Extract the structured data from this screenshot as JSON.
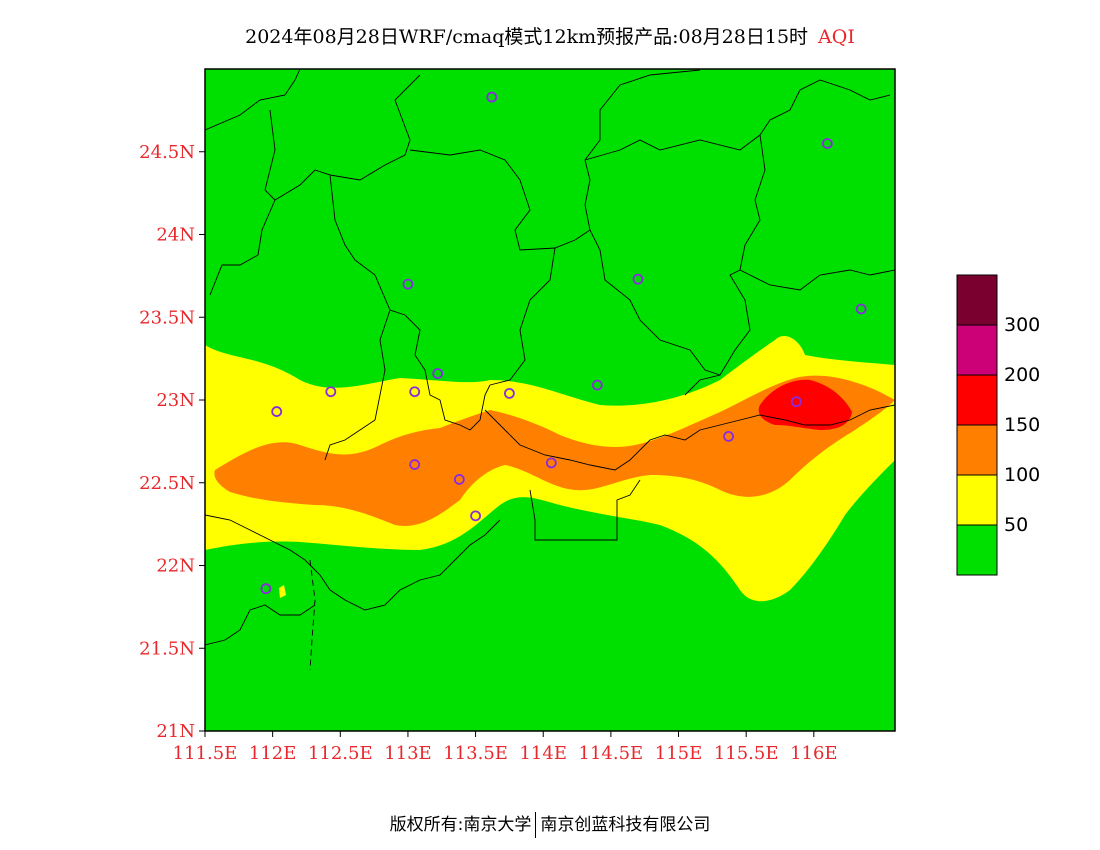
{
  "title": {
    "main": "2024年08月28日WRF/cmaq模式12km预报产品:08月28日15时",
    "variable": "AQI"
  },
  "colors": {
    "good": "#00e000",
    "moderate": "#ffff00",
    "usg": "#ff8000",
    "unhealthy": "#ff0000",
    "very_unhealthy": "#cc0077",
    "hazardous": "#7a0030",
    "label": "#e8282c",
    "station": "#8a2be2"
  },
  "chart_data": {
    "type": "heatmap",
    "variable": "AQI",
    "lon_range": [
      111.5,
      116.6
    ],
    "lat_range": [
      21.0,
      25.0
    ],
    "lat_ticks": [
      "24.5N",
      "24N",
      "23.5N",
      "23N",
      "22.5N",
      "22N",
      "21.5N",
      "21N"
    ],
    "lon_ticks": [
      "111.5E",
      "112E",
      "112.5E",
      "113E",
      "113.5E",
      "114E",
      "114.5E",
      "115E",
      "115.5E",
      "116E"
    ],
    "legend": {
      "labels": [
        "300",
        "200",
        "150",
        "100",
        "50"
      ]
    },
    "stations": [
      {
        "lon": 113.62,
        "lat": 24.83
      },
      {
        "lon": 116.1,
        "lat": 24.55
      },
      {
        "lon": 113.0,
        "lat": 23.7
      },
      {
        "lon": 114.7,
        "lat": 23.73
      },
      {
        "lon": 116.35,
        "lat": 23.55
      },
      {
        "lon": 112.43,
        "lat": 23.05
      },
      {
        "lon": 113.05,
        "lat": 23.05
      },
      {
        "lon": 113.22,
        "lat": 23.16
      },
      {
        "lon": 113.75,
        "lat": 23.04
      },
      {
        "lon": 114.4,
        "lat": 23.09
      },
      {
        "lon": 112.03,
        "lat": 22.93
      },
      {
        "lon": 113.05,
        "lat": 22.61
      },
      {
        "lon": 113.38,
        "lat": 22.52
      },
      {
        "lon": 114.06,
        "lat": 22.62
      },
      {
        "lon": 113.5,
        "lat": 22.3
      },
      {
        "lon": 115.37,
        "lat": 22.78
      },
      {
        "lon": 115.87,
        "lat": 22.99
      },
      {
        "lon": 111.95,
        "lat": 21.86
      }
    ]
  },
  "footer": {
    "left": "版权所有:南京大学",
    "right": "南京创蓝科技有限公司"
  }
}
